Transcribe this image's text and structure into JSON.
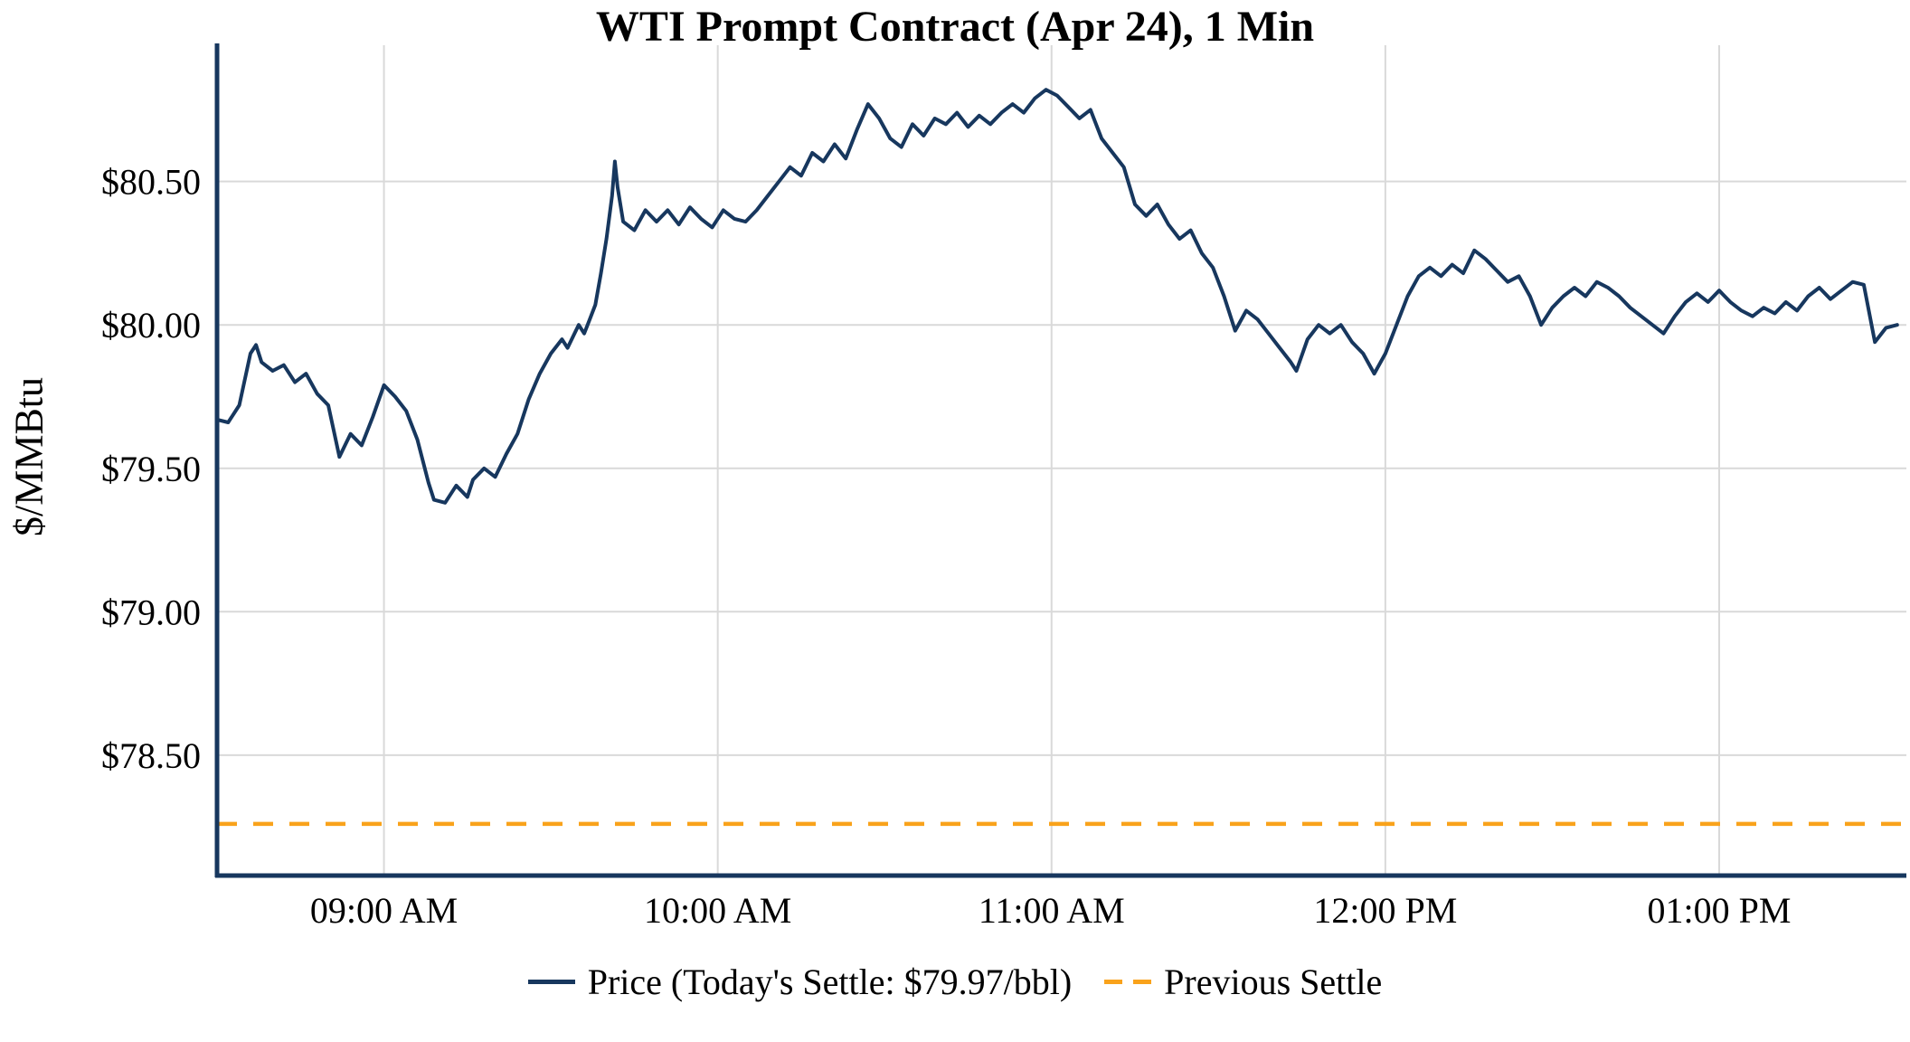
{
  "title": "WTI Prompt Contract (Apr 24), 1 Min",
  "y_axis_label": "$/MMBtu",
  "legend": {
    "price_label": "Price (Today's Settle: $79.97/bbl)",
    "previous_settle_label": "Previous Settle"
  },
  "colors": {
    "price_line": "#17375E",
    "previous_settle_line": "#F9A21B",
    "axis": "#17375E",
    "grid": "#D9D9D9",
    "text": "#000000"
  },
  "chart_data": {
    "type": "line",
    "title": "WTI Prompt Contract (Apr 24), 1 Min",
    "xlabel": "",
    "ylabel": "$/MMBtu",
    "x_unit": "minutes after 08:30 AM",
    "xlim": [
      0,
      303
    ],
    "ylim": [
      78.08,
      80.95
    ],
    "x_ticks": [
      {
        "t": 30,
        "label": "09:00 AM"
      },
      {
        "t": 90,
        "label": "10:00 AM"
      },
      {
        "t": 150,
        "label": "11:00 AM"
      },
      {
        "t": 210,
        "label": "12:00 PM"
      },
      {
        "t": 270,
        "label": "01:00 PM"
      }
    ],
    "y_ticks": [
      {
        "v": 78.5,
        "label": "$78.50"
      },
      {
        "v": 79.0,
        "label": "$79.00"
      },
      {
        "v": 79.5,
        "label": "$79.50"
      },
      {
        "v": 80.0,
        "label": "$80.00"
      },
      {
        "v": 80.5,
        "label": "$80.50"
      }
    ],
    "todays_settle": 79.97,
    "previous_settle": 78.26,
    "series": [
      {
        "name": "Price",
        "style": "solid",
        "points": [
          [
            0,
            79.67
          ],
          [
            2,
            79.66
          ],
          [
            4,
            79.72
          ],
          [
            6,
            79.9
          ],
          [
            7,
            79.93
          ],
          [
            8,
            79.87
          ],
          [
            10,
            79.84
          ],
          [
            12,
            79.86
          ],
          [
            14,
            79.8
          ],
          [
            16,
            79.83
          ],
          [
            18,
            79.76
          ],
          [
            20,
            79.72
          ],
          [
            22,
            79.54
          ],
          [
            24,
            79.62
          ],
          [
            26,
            79.58
          ],
          [
            28,
            79.68
          ],
          [
            30,
            79.79
          ],
          [
            32,
            79.75
          ],
          [
            34,
            79.7
          ],
          [
            36,
            79.6
          ],
          [
            38,
            79.45
          ],
          [
            39,
            79.39
          ],
          [
            41,
            79.38
          ],
          [
            43,
            79.44
          ],
          [
            45,
            79.4
          ],
          [
            46,
            79.46
          ],
          [
            48,
            79.5
          ],
          [
            50,
            79.47
          ],
          [
            52,
            79.55
          ],
          [
            54,
            79.62
          ],
          [
            56,
            79.74
          ],
          [
            58,
            79.83
          ],
          [
            60,
            79.9
          ],
          [
            62,
            79.95
          ],
          [
            63,
            79.92
          ],
          [
            65,
            80.0
          ],
          [
            66,
            79.97
          ],
          [
            67,
            80.02
          ],
          [
            68,
            80.07
          ],
          [
            69,
            80.18
          ],
          [
            70,
            80.3
          ],
          [
            71,
            80.45
          ],
          [
            71.5,
            80.57
          ],
          [
            72,
            80.48
          ],
          [
            73,
            80.36
          ],
          [
            75,
            80.33
          ],
          [
            77,
            80.4
          ],
          [
            79,
            80.36
          ],
          [
            81,
            80.4
          ],
          [
            83,
            80.35
          ],
          [
            85,
            80.41
          ],
          [
            87,
            80.37
          ],
          [
            89,
            80.34
          ],
          [
            91,
            80.4
          ],
          [
            93,
            80.37
          ],
          [
            95,
            80.36
          ],
          [
            97,
            80.4
          ],
          [
            99,
            80.45
          ],
          [
            101,
            80.5
          ],
          [
            103,
            80.55
          ],
          [
            105,
            80.52
          ],
          [
            107,
            80.6
          ],
          [
            109,
            80.57
          ],
          [
            111,
            80.63
          ],
          [
            113,
            80.58
          ],
          [
            115,
            80.68
          ],
          [
            117,
            80.77
          ],
          [
            119,
            80.72
          ],
          [
            121,
            80.65
          ],
          [
            123,
            80.62
          ],
          [
            125,
            80.7
          ],
          [
            127,
            80.66
          ],
          [
            129,
            80.72
          ],
          [
            131,
            80.7
          ],
          [
            133,
            80.74
          ],
          [
            135,
            80.69
          ],
          [
            137,
            80.73
          ],
          [
            139,
            80.7
          ],
          [
            141,
            80.74
          ],
          [
            143,
            80.77
          ],
          [
            145,
            80.74
          ],
          [
            147,
            80.79
          ],
          [
            149,
            80.82
          ],
          [
            151,
            80.8
          ],
          [
            153,
            80.76
          ],
          [
            155,
            80.72
          ],
          [
            157,
            80.75
          ],
          [
            159,
            80.65
          ],
          [
            161,
            80.6
          ],
          [
            163,
            80.55
          ],
          [
            165,
            80.42
          ],
          [
            167,
            80.38
          ],
          [
            169,
            80.42
          ],
          [
            171,
            80.35
          ],
          [
            173,
            80.3
          ],
          [
            175,
            80.33
          ],
          [
            177,
            80.25
          ],
          [
            179,
            80.2
          ],
          [
            181,
            80.1
          ],
          [
            183,
            79.98
          ],
          [
            185,
            80.05
          ],
          [
            187,
            80.02
          ],
          [
            189,
            79.97
          ],
          [
            191,
            79.92
          ],
          [
            193,
            79.87
          ],
          [
            194,
            79.84
          ],
          [
            196,
            79.95
          ],
          [
            198,
            80.0
          ],
          [
            200,
            79.97
          ],
          [
            202,
            80.0
          ],
          [
            204,
            79.94
          ],
          [
            206,
            79.9
          ],
          [
            208,
            79.83
          ],
          [
            210,
            79.9
          ],
          [
            212,
            80.0
          ],
          [
            214,
            80.1
          ],
          [
            216,
            80.17
          ],
          [
            218,
            80.2
          ],
          [
            220,
            80.17
          ],
          [
            222,
            80.21
          ],
          [
            224,
            80.18
          ],
          [
            226,
            80.26
          ],
          [
            228,
            80.23
          ],
          [
            230,
            80.19
          ],
          [
            232,
            80.15
          ],
          [
            234,
            80.17
          ],
          [
            236,
            80.1
          ],
          [
            238,
            80.0
          ],
          [
            240,
            80.06
          ],
          [
            242,
            80.1
          ],
          [
            244,
            80.13
          ],
          [
            246,
            80.1
          ],
          [
            248,
            80.15
          ],
          [
            250,
            80.13
          ],
          [
            252,
            80.1
          ],
          [
            254,
            80.06
          ],
          [
            256,
            80.03
          ],
          [
            258,
            80.0
          ],
          [
            260,
            79.97
          ],
          [
            262,
            80.03
          ],
          [
            264,
            80.08
          ],
          [
            266,
            80.11
          ],
          [
            268,
            80.08
          ],
          [
            270,
            80.12
          ],
          [
            272,
            80.08
          ],
          [
            274,
            80.05
          ],
          [
            276,
            80.03
          ],
          [
            278,
            80.06
          ],
          [
            280,
            80.04
          ],
          [
            282,
            80.08
          ],
          [
            284,
            80.05
          ],
          [
            286,
            80.1
          ],
          [
            288,
            80.13
          ],
          [
            290,
            80.09
          ],
          [
            292,
            80.12
          ],
          [
            294,
            80.15
          ],
          [
            296,
            80.14
          ],
          [
            298,
            79.94
          ],
          [
            300,
            79.99
          ],
          [
            302,
            80.0
          ]
        ]
      },
      {
        "name": "Previous Settle",
        "style": "dashed",
        "value": 78.26
      }
    ]
  }
}
